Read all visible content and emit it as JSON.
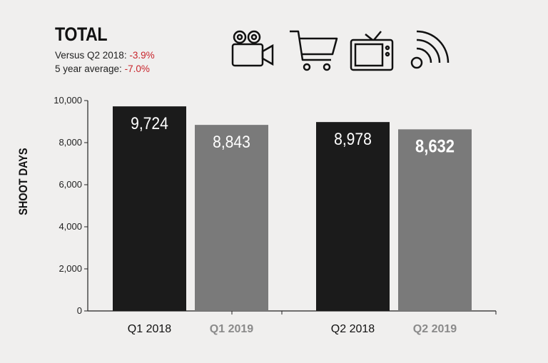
{
  "header": {
    "title": "TOTAL",
    "stat1_label": "Versus Q2 2018:",
    "stat1_value": "-3.9%",
    "stat2_label": "5 year average:",
    "stat2_value": "-7.0%"
  },
  "icons": [
    "film-camera-icon",
    "shopping-cart-icon",
    "television-icon",
    "broadcast-signal-icon"
  ],
  "colors": {
    "q2018": "#1b1b1b",
    "q2019": "#7a7a7a",
    "negative": "#c8242b"
  },
  "chart_data": {
    "type": "bar",
    "ylabel": "SHOOT DAYS",
    "ylim": [
      0,
      10000
    ],
    "yticks": [
      "0",
      "2,000",
      "4,000",
      "6,000",
      "8,000",
      "10,000"
    ],
    "categories": [
      "Q1 2018",
      "Q1 2019",
      "Q2 2018",
      "Q2 2019"
    ],
    "values": [
      9724,
      8843,
      8978,
      8632
    ],
    "value_labels": [
      "9,724",
      "8,843",
      "8,978",
      "8,632"
    ],
    "grid": false,
    "legend": "none"
  }
}
